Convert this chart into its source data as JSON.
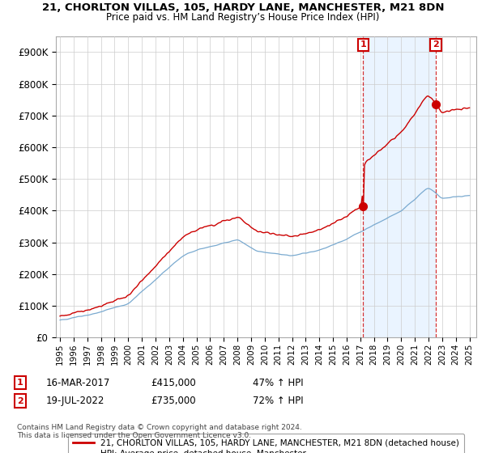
{
  "title_line1": "21, CHORLTON VILLAS, 105, HARDY LANE, MANCHESTER, M21 8DN",
  "title_line2": "Price paid vs. HM Land Registry’s House Price Index (HPI)",
  "ylim": [
    0,
    950000
  ],
  "yticks": [
    0,
    100000,
    200000,
    300000,
    400000,
    500000,
    600000,
    700000,
    800000,
    900000
  ],
  "ytick_labels": [
    "£0",
    "£100K",
    "£200K",
    "£300K",
    "£400K",
    "£500K",
    "£600K",
    "£700K",
    "£800K",
    "£900K"
  ],
  "legend_entry1": "21, CHORLTON VILLAS, 105, HARDY LANE, MANCHESTER, M21 8DN (detached house)",
  "legend_entry2": "HPI: Average price, detached house, Manchester",
  "sale1_date": "16-MAR-2017",
  "sale1_price": "£415,000",
  "sale1_hpi": "47% ↑ HPI",
  "sale1_year": 2017.21,
  "sale1_value": 415000,
  "sale2_date": "19-JUL-2022",
  "sale2_price": "£735,000",
  "sale2_hpi": "72% ↑ HPI",
  "sale2_year": 2022.54,
  "sale2_value": 735000,
  "vline_color": "#cc0000",
  "shade_color": "#ddeeff",
  "sale_marker_color": "#cc0000",
  "hpi_line_color": "#7aaad0",
  "property_line_color": "#cc0000",
  "footnote": "Contains HM Land Registry data © Crown copyright and database right 2024.\nThis data is licensed under the Open Government Licence v3.0.",
  "background_color": "#ffffff",
  "grid_color": "#cccccc",
  "xlim_left": 1994.7,
  "xlim_right": 2025.5
}
